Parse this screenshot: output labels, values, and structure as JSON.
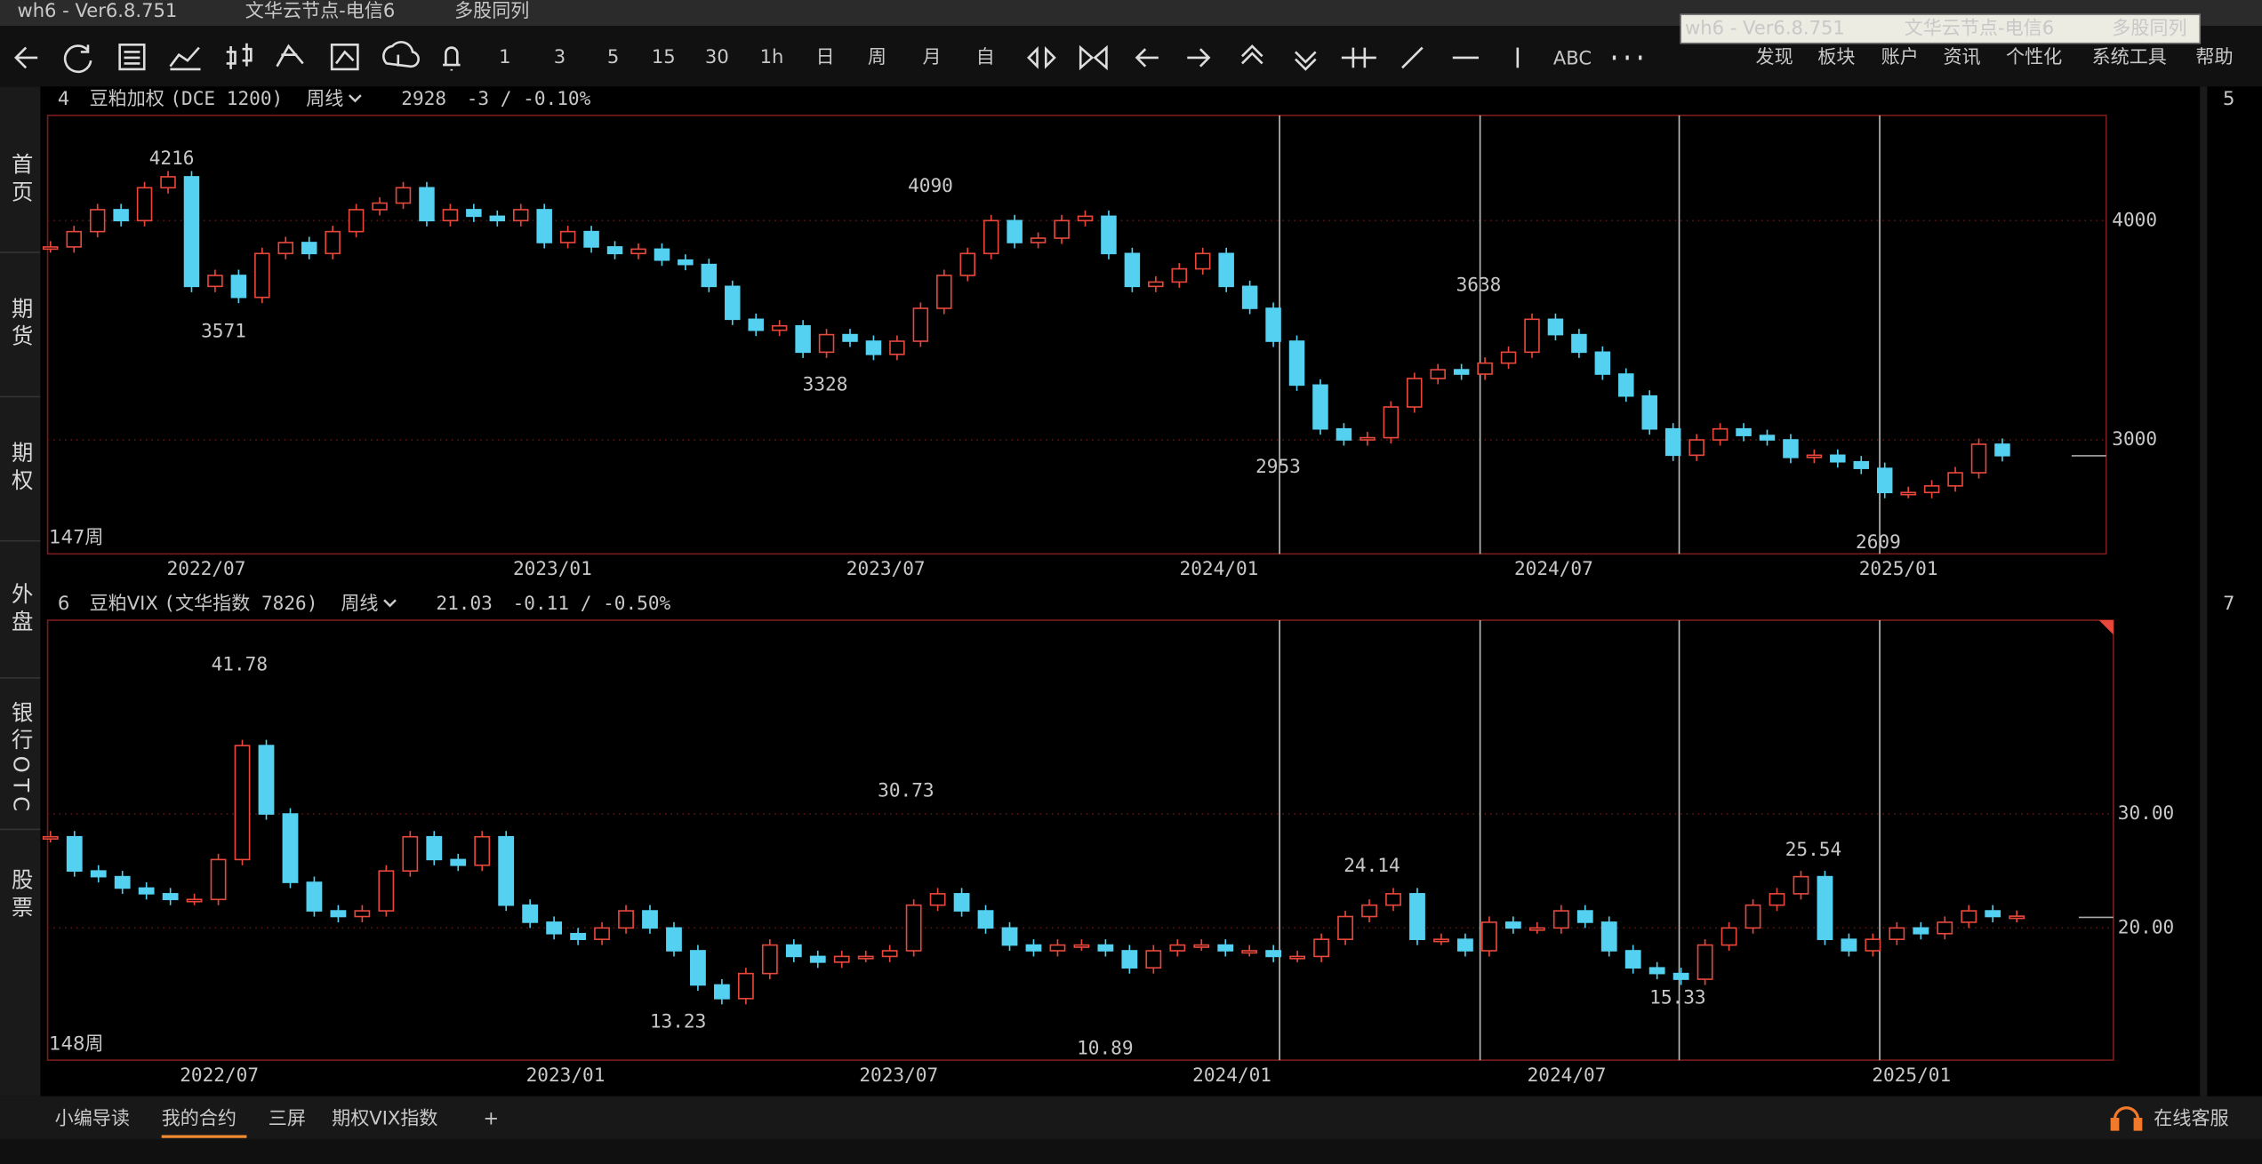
{
  "title_bar": {
    "app": "wh6  -  Ver6.8.751",
    "node": "文华云节点-电信6",
    "mode": "多股同列"
  },
  "tooltip": {
    "app": "wh6  -  Ver6.8.751",
    "node": "文华云节点-电信6",
    "mode": "多股同列"
  },
  "toolbar": {
    "periods": [
      "1",
      "3",
      "5",
      "15",
      "30",
      "1h",
      "日",
      "周",
      "月",
      "自"
    ],
    "text_tool": "ABC",
    "menu": [
      "发现",
      "板块",
      "账户",
      "资讯",
      "个性化",
      "系统工具",
      "帮助"
    ]
  },
  "sidebar": [
    "首页",
    "期货",
    "期权",
    "外盘",
    "银行OTC",
    "股票"
  ],
  "charts": [
    {
      "type": "candlestick",
      "window": "4",
      "name": "豆粕加权",
      "code": "(DCE 1200)",
      "period": "周线",
      "last": 2928,
      "change": "-3 / -0.10%",
      "side_window": "5",
      "bars_label": "147周",
      "x_labels": [
        "2022/07",
        "2023/01",
        "2023/07",
        "2024/01",
        "2024/07",
        "2025/01"
      ],
      "ylim": [
        2480,
        4480
      ],
      "yticks": [
        3000,
        4000
      ],
      "closes": [
        3880,
        3950,
        4050,
        4000,
        4150,
        4200,
        3700,
        3750,
        3650,
        3850,
        3900,
        3850,
        3950,
        4050,
        4080,
        4150,
        4000,
        4050,
        4020,
        4000,
        4050,
        3900,
        3950,
        3880,
        3850,
        3870,
        3820,
        3800,
        3700,
        3550,
        3500,
        3520,
        3400,
        3480,
        3450,
        3390,
        3450,
        3600,
        3750,
        3850,
        4000,
        3900,
        3920,
        4000,
        4020,
        3850,
        3700,
        3720,
        3780,
        3850,
        3700,
        3600,
        3450,
        3250,
        3050,
        3000,
        3010,
        3150,
        3280,
        3320,
        3300,
        3350,
        3400,
        3550,
        3480,
        3400,
        3300,
        3200,
        3050,
        2930,
        3000,
        3050,
        3020,
        3000,
        2920,
        2930,
        2900,
        2870,
        2760,
        2760,
        2790,
        2850,
        2980,
        2928
      ],
      "peaks": [
        4216,
        4090,
        3638
      ],
      "troughs": [
        3571,
        3328,
        2953,
        2609
      ]
    },
    {
      "type": "candlestick",
      "window": "6",
      "name": "豆粕VIX",
      "code": "(文华指数 7826)",
      "period": "周线",
      "last": 21.03,
      "change": "-0.11 / -0.50%",
      "side_window": "7",
      "bars_label": "148周",
      "x_labels": [
        "2022/07",
        "2023/01",
        "2023/07",
        "2024/01",
        "2024/07",
        "2025/01"
      ],
      "ylim": [
        8.4,
        47
      ],
      "yticks": [
        {
          "value": 20,
          "label": "20.00"
        },
        {
          "value": 30,
          "label": "30.00"
        }
      ],
      "closes": [
        28,
        25,
        24.5,
        23.5,
        23,
        22.5,
        22.5,
        26,
        36,
        30,
        24,
        21.5,
        21,
        21.5,
        25,
        28,
        26,
        25.5,
        28,
        22,
        20.5,
        19.5,
        19,
        20,
        21.5,
        20,
        18,
        15,
        13.8,
        16,
        18.5,
        17.5,
        17,
        17.5,
        17.5,
        18,
        22,
        23,
        21.5,
        20,
        18.5,
        18,
        18.5,
        18.5,
        18,
        16.5,
        18,
        18.5,
        18.5,
        18,
        18,
        17.5,
        17.5,
        19,
        21,
        22,
        23,
        19,
        19,
        18,
        20.5,
        20,
        20,
        21.5,
        20.5,
        18,
        16.5,
        16,
        15.5,
        18.5,
        20,
        22,
        23,
        24.5,
        19,
        18,
        19,
        20,
        19.5,
        20.5,
        21.5,
        21,
        21.03
      ],
      "peaks": [
        41.78,
        30.73,
        24.14,
        25.54
      ],
      "troughs": [
        13.23,
        10.89,
        15.33
      ]
    }
  ],
  "tabs": [
    "小编导读",
    "我的合约",
    "三屏",
    "期权VIX指数"
  ],
  "support": "在线客服"
}
